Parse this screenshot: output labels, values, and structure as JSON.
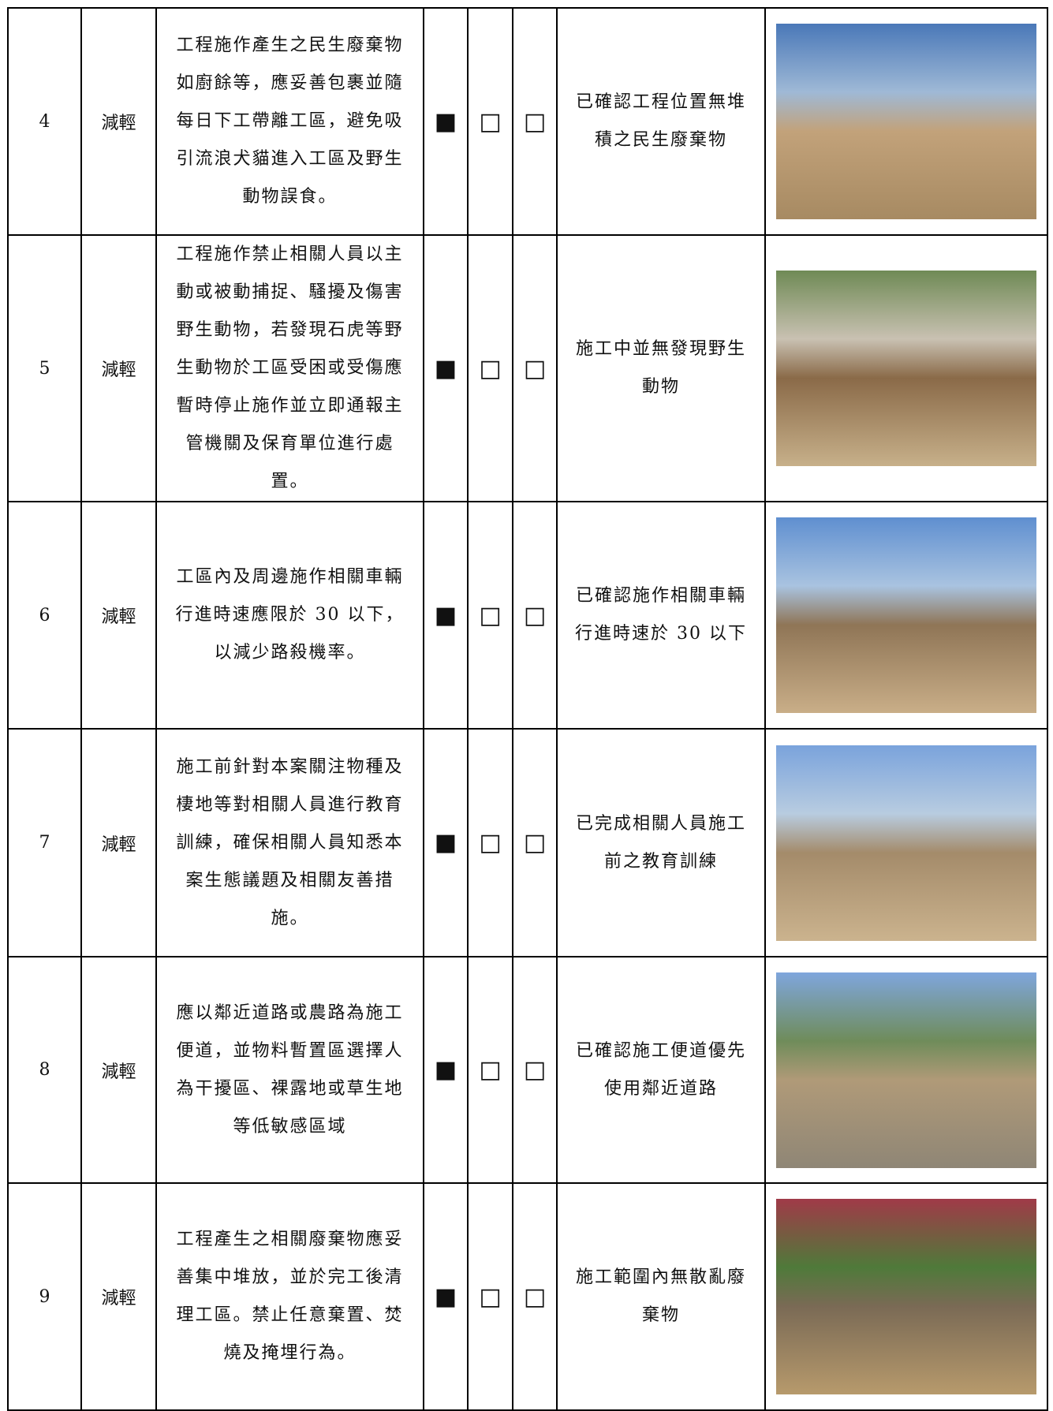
{
  "table": {
    "rows": [
      {
        "no": "4",
        "type": "減輕",
        "measure": "工程施作產生之民生廢棄物如廚餘等，應妥善包裹並隨每日下工帶離工區，避免吸引流浪犬貓進入工區及野生動物誤食。",
        "checks": [
          "■",
          "□",
          "□"
        ],
        "result": "已確認工程位置無堆積之民生廢棄物"
      },
      {
        "no": "5",
        "type": "減輕",
        "measure": "工程施作禁止相關人員以主動或被動捕捉、騷擾及傷害野生動物，若發現石虎等野生動物於工區受困或受傷應暫時停止施作並立即通報主管機關及保育單位進行處置。",
        "checks": [
          "■",
          "□",
          "□"
        ],
        "result": "施工中並無發現野生動物"
      },
      {
        "no": "6",
        "type": "減輕",
        "measure": "工區內及周邊施作相關車輛行進時速應限於 30 以下，以減少路殺機率。",
        "checks": [
          "■",
          "□",
          "□"
        ],
        "result": "已確認施作相關車輛行進時速於 30 以下"
      },
      {
        "no": "7",
        "type": "減輕",
        "measure": "施工前針對本案關注物種及棲地等對相關人員進行教育訓練，確保相關人員知悉本案生態議題及相關友善措施。",
        "checks": [
          "■",
          "□",
          "□"
        ],
        "result": "已完成相關人員施工前之教育訓練"
      },
      {
        "no": "8",
        "type": "減輕",
        "measure": "應以鄰近道路或農路為施工便道，並物料暫置區選擇人為干擾區、裸露地或草生地等低敏感區域",
        "checks": [
          "■",
          "□",
          "□"
        ],
        "result": "已確認施工便道優先使用鄰近道路"
      },
      {
        "no": "9",
        "type": "減輕",
        "measure": "工程產生之相關廢棄物應妥善集中堆放，並於完工後清理工區。禁止任意棄置、焚燒及掩埋行為。",
        "checks": [
          "■",
          "□",
          "□"
        ],
        "result": "施工範圍內無散亂廢棄物"
      }
    ]
  }
}
